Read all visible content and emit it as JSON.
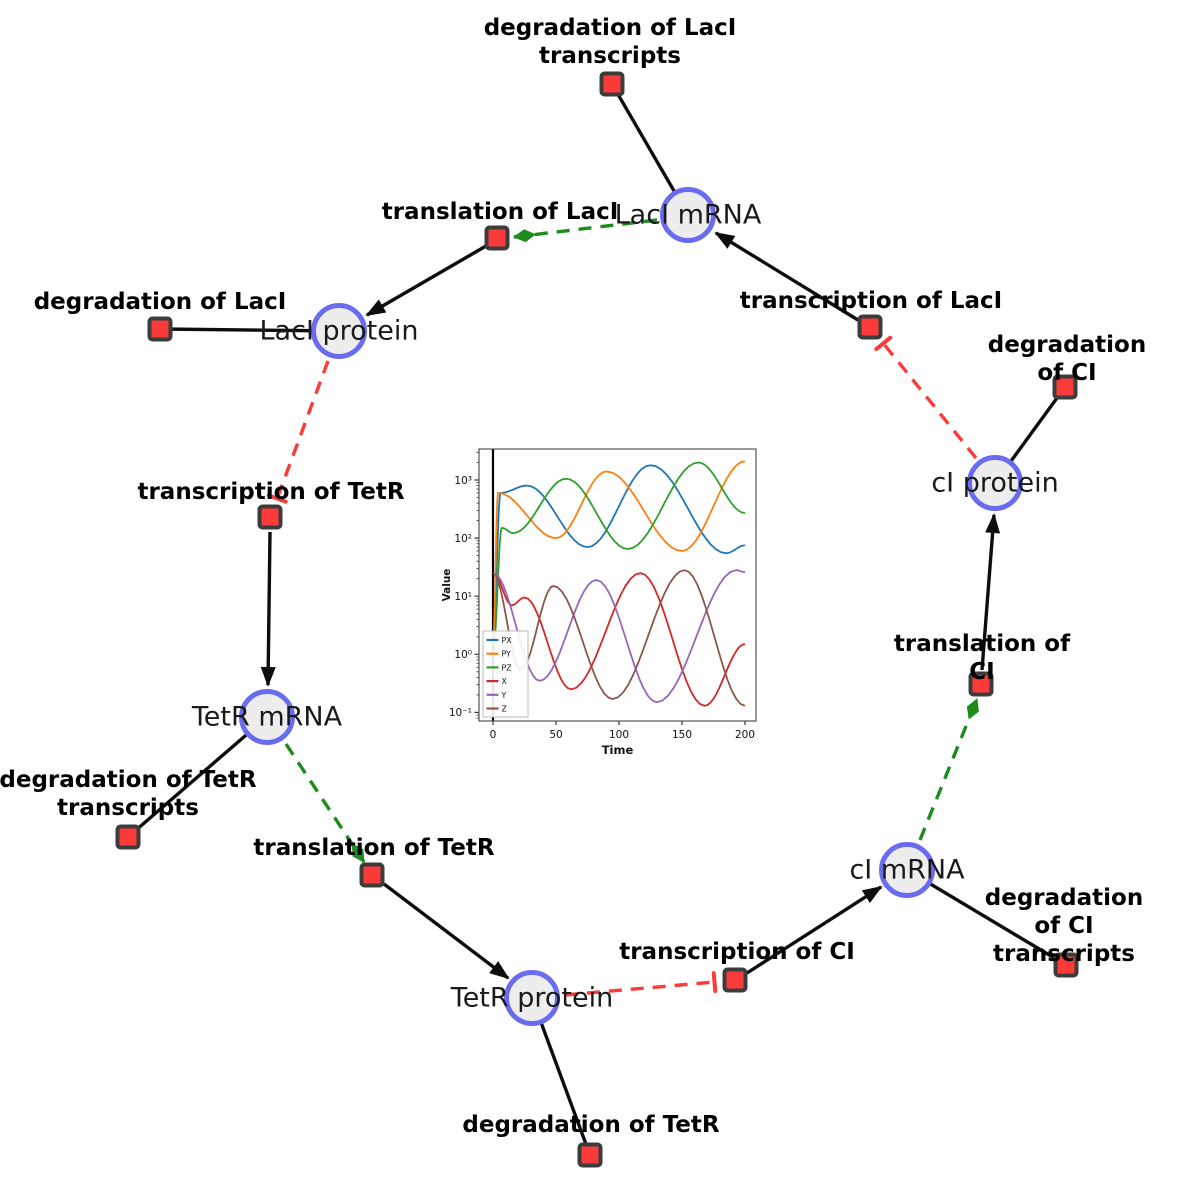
{
  "diagram": {
    "species": [
      {
        "label": "LacI mRNA"
      },
      {
        "label": "LacI protein"
      },
      {
        "label": "TetR mRNA"
      },
      {
        "label": "TetR protein"
      },
      {
        "label": "cI mRNA"
      },
      {
        "label": "cI protein"
      }
    ],
    "reactions": [
      {
        "label": "degradation of LacI\ntranscripts"
      },
      {
        "label": "translation of LacI"
      },
      {
        "label": "degradation of LacI"
      },
      {
        "label": "transcription of LacI"
      },
      {
        "label": "degradation of CI"
      },
      {
        "label": "transcription of TetR"
      },
      {
        "label": "degradation of TetR\ntranscripts"
      },
      {
        "label": "translation of TetR"
      },
      {
        "label": "degradation of TetR"
      },
      {
        "label": "transcription of CI"
      },
      {
        "label": "degradation of CI\ntranscripts"
      },
      {
        "label": "translation of CI"
      }
    ],
    "colors": {
      "species_fill": "#ededed",
      "species_border": "#6b6bf0",
      "reaction_fill": "#fb3a3a",
      "reaction_border": "#3c3c3c",
      "edge_solid": "#0d0d0d",
      "edge_activation": "#1e8b1e",
      "edge_inhibition": "#fb3a3a"
    }
  },
  "chart_data": {
    "type": "line",
    "title": "",
    "xlabel": "Time",
    "ylabel": "Value",
    "x_ticks": [
      0,
      50,
      100,
      150,
      200
    ],
    "xlim": [
      -11,
      209
    ],
    "y_scale": "log",
    "y_tick_labels": [
      "10⁻¹",
      "10⁰",
      "10¹",
      "10²",
      "10³"
    ],
    "y_tick_values": [
      0.1,
      1,
      10,
      100,
      1000
    ],
    "ylim": [
      0.07,
      3400
    ],
    "grid": false,
    "legend_position": "lower left",
    "vline_x": 0,
    "series": [
      {
        "name": "PX",
        "color": "#1f77b4",
        "points": [
          [
            0,
            2
          ],
          [
            6,
            600
          ],
          [
            27,
            800
          ],
          [
            75,
            70
          ],
          [
            125,
            1800
          ],
          [
            185,
            55
          ],
          [
            200,
            75
          ]
        ]
      },
      {
        "name": "PY",
        "color": "#ff7f0e",
        "points": [
          [
            0,
            1.5
          ],
          [
            4,
            600
          ],
          [
            50,
            100
          ],
          [
            90,
            1400
          ],
          [
            150,
            60
          ],
          [
            200,
            2100
          ]
        ]
      },
      {
        "name": "PZ",
        "color": "#2ca02c",
        "points": [
          [
            0,
            1
          ],
          [
            7,
            150
          ],
          [
            16,
            122
          ],
          [
            58,
            1050
          ],
          [
            107,
            65
          ],
          [
            163,
            2000
          ],
          [
            200,
            270
          ]
        ]
      },
      {
        "name": "X",
        "color": "#d62728",
        "points": [
          [
            0,
            25
          ],
          [
            15,
            7
          ],
          [
            25,
            9.5
          ],
          [
            62,
            0.25
          ],
          [
            117,
            25
          ],
          [
            168,
            0.13
          ],
          [
            200,
            1.5
          ]
        ]
      },
      {
        "name": "Y",
        "color": "#9467bd",
        "points": [
          [
            0,
            25
          ],
          [
            37,
            0.35
          ],
          [
            82,
            19
          ],
          [
            130,
            0.15
          ],
          [
            193,
            28
          ],
          [
            200,
            26
          ]
        ]
      },
      {
        "name": "Z",
        "color": "#8c564b",
        "points": [
          [
            0,
            25
          ],
          [
            22,
            0.55
          ],
          [
            48,
            15
          ],
          [
            95,
            0.17
          ],
          [
            152,
            28
          ],
          [
            200,
            0.13
          ]
        ]
      }
    ]
  }
}
